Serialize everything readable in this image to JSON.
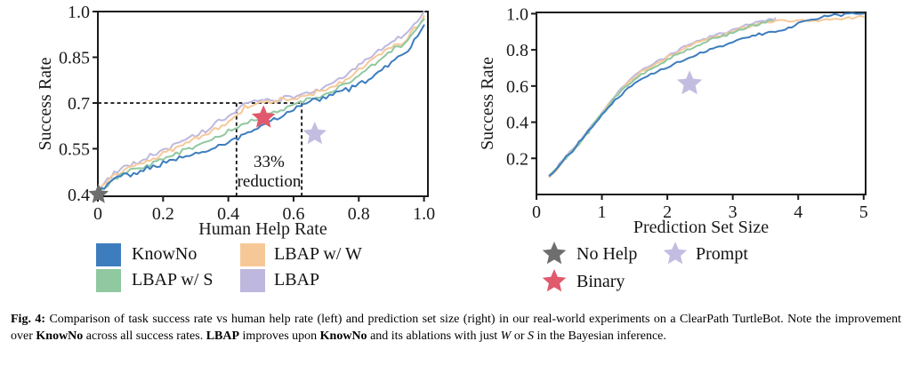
{
  "figure": {
    "caption_segments": [
      {
        "text": "Fig. 4: ",
        "style": "bold"
      },
      {
        "text": "Comparison of task success rate vs human help rate (left) and prediction set size (right) in our real-world experiments on a ClearPath TurtleBot. Note the improvement over ",
        "style": "normal"
      },
      {
        "text": "KnowNo",
        "style": "bold"
      },
      {
        "text": " across all success rates. ",
        "style": "normal"
      },
      {
        "text": "LBAP",
        "style": "bold"
      },
      {
        "text": " improves upon ",
        "style": "normal"
      },
      {
        "text": "KnowNo",
        "style": "bold"
      },
      {
        "text": " and its ablations with just ",
        "style": "normal"
      },
      {
        "text": "W",
        "style": "italic"
      },
      {
        "text": " or ",
        "style": "normal"
      },
      {
        "text": "S",
        "style": "italic"
      },
      {
        "text": " in the Bayesian inference.",
        "style": "normal"
      }
    ]
  },
  "colors": {
    "knowno_blue": "#3D7DBE",
    "lbap_s_green": "#90C8A0",
    "lbap_w_orange": "#F7C897",
    "lbap_purple": "#BEB8DE",
    "no_help_gray": "#6E6E6E",
    "binary_red": "#E0596C",
    "prompt_purple": "#C3BDE1",
    "axis_black": "#1a1a1a"
  },
  "legends": {
    "series": [
      {
        "label": "KnowNo",
        "color": "#3D7DBE"
      },
      {
        "label": "LBAP w/ S",
        "color": "#90C8A0"
      },
      {
        "label": "LBAP w/ W",
        "color": "#F7C897"
      },
      {
        "label": "LBAP",
        "color": "#BEB8DE"
      }
    ],
    "markers": [
      {
        "label": "No Help",
        "color": "#6E6E6E"
      },
      {
        "label": "Binary",
        "color": "#E0596C"
      },
      {
        "label": "Prompt",
        "color": "#C3BDE1"
      }
    ]
  },
  "chart_data": [
    {
      "type": "line",
      "title": "",
      "xlabel": "Human Help Rate",
      "ylabel": "Success Rate",
      "xlim": [
        0,
        1.012
      ],
      "ylim": [
        0.394,
        1.0
      ],
      "grid": false,
      "xticks": [
        {
          "v": 0,
          "l": "0"
        },
        {
          "v": 0.2,
          "l": "0.2"
        },
        {
          "v": 0.4,
          "l": "0.4"
        },
        {
          "v": 0.6,
          "l": "0.6"
        },
        {
          "v": 0.8,
          "l": "0.8"
        },
        {
          "v": 1.0,
          "l": "1.0"
        }
      ],
      "yticks": [
        {
          "v": 0.4,
          "l": "0.4"
        },
        {
          "v": 0.55,
          "l": "0.55"
        },
        {
          "v": 0.7,
          "l": "0.7"
        },
        {
          "v": 0.85,
          "l": "0.85"
        },
        {
          "v": 1.0,
          "l": "1.0"
        }
      ],
      "series": [
        {
          "name": "KnowNo",
          "color": "#3D7DBE",
          "x": [
            0,
            0.05,
            0.1,
            0.15,
            0.2,
            0.25,
            0.3,
            0.35,
            0.4,
            0.45,
            0.5,
            0.55,
            0.6,
            0.65,
            0.7,
            0.75,
            0.8,
            0.85,
            0.9,
            0.95,
            1.0
          ],
          "y": [
            0.408,
            0.45,
            0.467,
            0.486,
            0.502,
            0.517,
            0.532,
            0.55,
            0.572,
            0.597,
            0.622,
            0.65,
            0.682,
            0.706,
            0.722,
            0.74,
            0.757,
            0.792,
            0.83,
            0.872,
            0.955
          ]
        },
        {
          "name": "LBAP w/ S",
          "color": "#90C8A0",
          "x": [
            0,
            0.05,
            0.1,
            0.15,
            0.2,
            0.25,
            0.3,
            0.35,
            0.4,
            0.45,
            0.5,
            0.55,
            0.6,
            0.65,
            0.7,
            0.75,
            0.8,
            0.85,
            0.9,
            0.95,
            1.0
          ],
          "y": [
            0.41,
            0.452,
            0.477,
            0.495,
            0.515,
            0.537,
            0.558,
            0.581,
            0.605,
            0.631,
            0.652,
            0.673,
            0.695,
            0.712,
            0.728,
            0.756,
            0.79,
            0.828,
            0.872,
            0.903,
            0.975
          ]
        },
        {
          "name": "LBAP w/ W",
          "color": "#F7C897",
          "x": [
            0,
            0.05,
            0.1,
            0.15,
            0.2,
            0.25,
            0.3,
            0.35,
            0.4,
            0.45,
            0.5,
            0.55,
            0.6,
            0.65,
            0.7,
            0.75,
            0.8,
            0.85,
            0.9,
            0.95,
            1.0
          ],
          "y": [
            0.412,
            0.462,
            0.49,
            0.511,
            0.532,
            0.556,
            0.58,
            0.606,
            0.64,
            0.684,
            0.701,
            0.707,
            0.713,
            0.726,
            0.744,
            0.771,
            0.812,
            0.85,
            0.883,
            0.911,
            0.985
          ]
        },
        {
          "name": "LBAP",
          "color": "#BEB8DE",
          "x": [
            0,
            0.05,
            0.1,
            0.15,
            0.2,
            0.25,
            0.3,
            0.35,
            0.4,
            0.45,
            0.5,
            0.55,
            0.6,
            0.65,
            0.7,
            0.75,
            0.8,
            0.85,
            0.9,
            0.95,
            1.0
          ],
          "y": [
            0.415,
            0.47,
            0.498,
            0.521,
            0.545,
            0.57,
            0.595,
            0.622,
            0.657,
            0.699,
            0.707,
            0.713,
            0.721,
            0.736,
            0.755,
            0.785,
            0.826,
            0.862,
            0.895,
            0.929,
            1.0
          ]
        }
      ],
      "markers": [
        {
          "name": "No Help",
          "color": "#6E6E6E",
          "x": 0.002,
          "y": 0.4,
          "size": 12
        },
        {
          "name": "Binary",
          "color": "#E0596C",
          "x": 0.508,
          "y": 0.652,
          "size": 14
        },
        {
          "name": "Prompt",
          "color": "#C3BDE1",
          "x": 0.665,
          "y": 0.598,
          "size": 14
        }
      ],
      "annotation": {
        "dashed_lines": [
          {
            "x1": 0,
            "y1": 0.7,
            "x2": 0.625,
            "y2": 0.7
          },
          {
            "x1": 0.425,
            "y1": 0.394,
            "x2": 0.425,
            "y2": 0.7
          },
          {
            "x1": 0.625,
            "y1": 0.394,
            "x2": 0.625,
            "y2": 0.7
          }
        ],
        "texts": [
          {
            "text": "33%",
            "x": 0.525,
            "y": 0.505
          },
          {
            "text": "reduction",
            "x": 0.525,
            "y": 0.44
          }
        ]
      }
    },
    {
      "type": "line",
      "title": "",
      "xlabel": "Prediction Set Size",
      "ylabel": "Success Rate",
      "xlim": [
        0,
        5.03
      ],
      "ylim": [
        0,
        1.007
      ],
      "grid": false,
      "xticks": [
        {
          "v": 0,
          "l": "0"
        },
        {
          "v": 1,
          "l": "1"
        },
        {
          "v": 2,
          "l": "2"
        },
        {
          "v": 3,
          "l": "3"
        },
        {
          "v": 4,
          "l": "4"
        },
        {
          "v": 5,
          "l": "5"
        }
      ],
      "yticks": [
        {
          "v": 0.2,
          "l": "0.2"
        },
        {
          "v": 0.4,
          "l": "0.4"
        },
        {
          "v": 0.6,
          "l": "0.6"
        },
        {
          "v": 0.8,
          "l": "0.8"
        },
        {
          "v": 1.0,
          "l": "1.0"
        }
      ],
      "series": [
        {
          "name": "KnowNo",
          "color": "#3D7DBE",
          "x": [
            0.2,
            0.4,
            0.6,
            0.8,
            1.0,
            1.2,
            1.4,
            1.6,
            1.8,
            2.0,
            2.2,
            2.4,
            2.6,
            2.8,
            3.0,
            3.2,
            3.4,
            3.6,
            3.8,
            4.0,
            4.2,
            4.4,
            4.6,
            5.0
          ],
          "y": [
            0.1,
            0.185,
            0.262,
            0.35,
            0.443,
            0.522,
            0.588,
            0.638,
            0.675,
            0.706,
            0.735,
            0.765,
            0.795,
            0.82,
            0.848,
            0.868,
            0.885,
            0.9,
            0.915,
            0.948,
            0.965,
            0.985,
            0.995,
            1.0
          ]
        },
        {
          "name": "LBAP w/ S",
          "color": "#90C8A0",
          "x": [
            0.2,
            0.4,
            0.6,
            0.8,
            1.0,
            1.2,
            1.4,
            1.6,
            1.8,
            2.0,
            2.2,
            2.4,
            2.6,
            2.8,
            3.0,
            3.2,
            3.4,
            3.6
          ],
          "y": [
            0.1,
            0.18,
            0.258,
            0.348,
            0.445,
            0.535,
            0.61,
            0.665,
            0.705,
            0.745,
            0.785,
            0.82,
            0.85,
            0.87,
            0.895,
            0.922,
            0.946,
            0.962
          ]
        },
        {
          "name": "LBAP w/ W",
          "color": "#F7C897",
          "x": [
            0.2,
            0.4,
            0.6,
            0.8,
            1.0,
            1.2,
            1.4,
            1.6,
            1.8,
            2.0,
            2.2,
            2.4,
            2.6,
            2.8,
            3.0,
            3.2,
            3.4,
            3.6,
            3.8,
            4.2,
            4.6,
            5.0
          ],
          "y": [
            0.095,
            0.183,
            0.262,
            0.352,
            0.45,
            0.54,
            0.616,
            0.676,
            0.716,
            0.756,
            0.796,
            0.83,
            0.856,
            0.876,
            0.9,
            0.926,
            0.946,
            0.956,
            0.958,
            0.962,
            0.968,
            0.982
          ]
        },
        {
          "name": "LBAP",
          "color": "#BEB8DE",
          "x": [
            0.2,
            0.4,
            0.6,
            0.8,
            1.0,
            1.2,
            1.4,
            1.6,
            1.8,
            2.0,
            2.2,
            2.4,
            2.6,
            2.8,
            3.0,
            3.2,
            3.4,
            3.6,
            3.65
          ],
          "y": [
            0.102,
            0.188,
            0.268,
            0.358,
            0.455,
            0.545,
            0.625,
            0.685,
            0.725,
            0.765,
            0.805,
            0.84,
            0.866,
            0.886,
            0.91,
            0.936,
            0.956,
            0.968,
            0.975
          ]
        }
      ],
      "markers": [
        {
          "name": "Prompt",
          "color": "#C3BDE1",
          "x": 2.34,
          "y": 0.613,
          "size": 15
        }
      ],
      "annotation": null
    }
  ]
}
